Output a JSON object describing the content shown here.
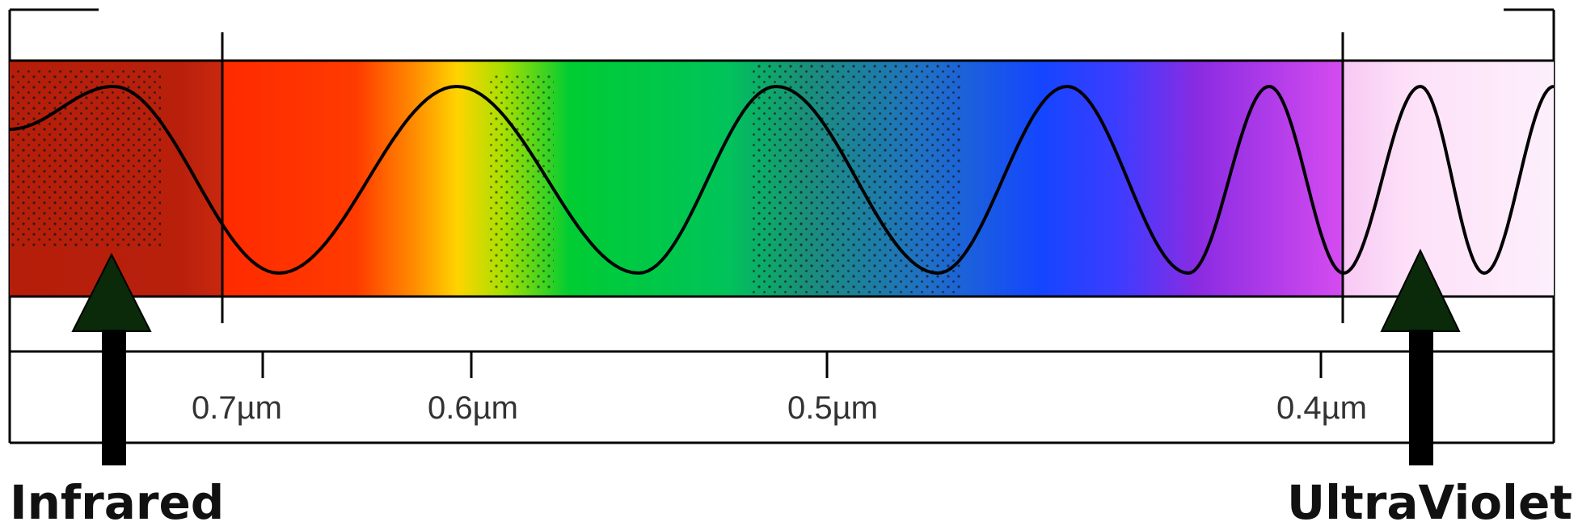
{
  "spectrum": {
    "ticks": [
      {
        "label": "0.7µm"
      },
      {
        "label": "0.6µm"
      },
      {
        "label": "0.5µm"
      },
      {
        "label": "0.4µm"
      }
    ]
  },
  "labels": {
    "infrared": "Infrared",
    "ultraviolet": "UltraViolet"
  },
  "colors": {
    "infrared_band": "#b8200c",
    "red": "#ff2a00",
    "orange": "#ff8a00",
    "yellow": "#ffd400",
    "green": "#00cc33",
    "teal": "#1a8f7a",
    "blue": "#1446ff",
    "violet": "#8a2be2",
    "magenta": "#d54cf0",
    "ultraviolet_band": "#fde0f8",
    "arrow_fill": "#0a2a0a"
  },
  "icons": {
    "left_arrow": "up-arrow-icon",
    "right_arrow": "up-arrow-icon"
  }
}
